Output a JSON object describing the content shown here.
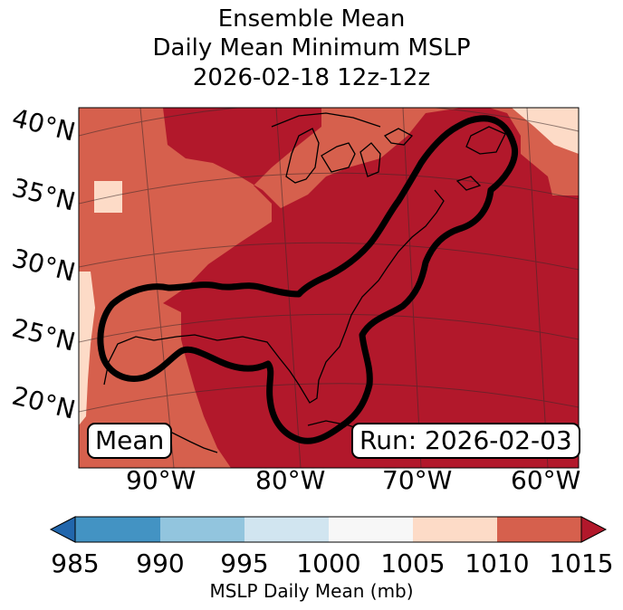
{
  "title": {
    "line1": "Ensemble Mean",
    "line2": "Daily Mean Minimum MSLP",
    "line3": "2026-02-18 12z-12z"
  },
  "map": {
    "lat_labels": [
      "40°N",
      "35°N",
      "30°N",
      "25°N",
      "20°N"
    ],
    "lon_labels": [
      "90°W",
      "80°W",
      "70°W",
      "60°W"
    ],
    "mean_label": "Mean",
    "run_label": "Run: 2026-02-03",
    "colors": {
      "bin_1010_1015": "#b2182b",
      "bin_1005_1010": "#d6604d",
      "bin_1000_1005": "#fddbc7",
      "contour": "#000000",
      "coast": "#000000"
    }
  },
  "colorbar": {
    "label": "MSLP Daily Mean (mb)",
    "ticks": [
      "985",
      "990",
      "995",
      "1000",
      "1005",
      "1010",
      "1015"
    ],
    "colors": [
      "#2166ac",
      "#4393c3",
      "#92c5de",
      "#d1e5f0",
      "#f7f7f7",
      "#fddbc7",
      "#d6604d",
      "#b2182b"
    ]
  }
}
